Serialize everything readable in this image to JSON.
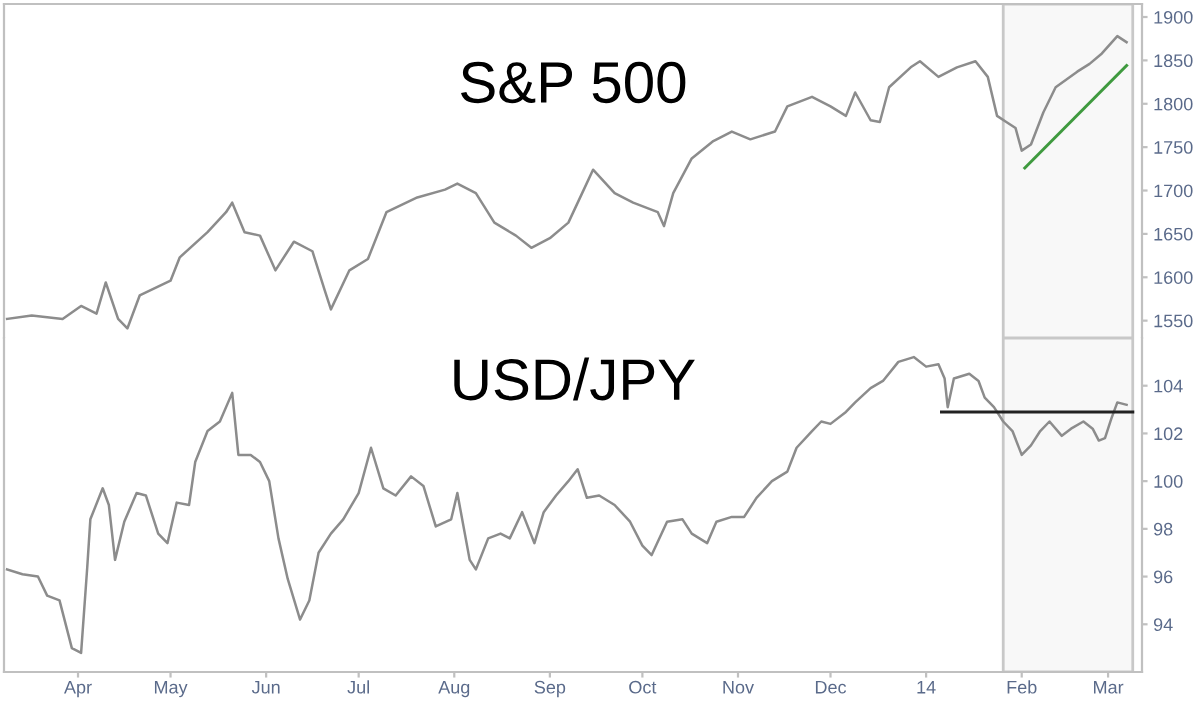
{
  "chart_data": [
    {
      "type": "line",
      "title": "S&P 500",
      "xlim": [
        "2013-03-08",
        "2014-03-12"
      ],
      "ylim": [
        1530,
        1915
      ],
      "yticks": [
        1550,
        1600,
        1650,
        1700,
        1750,
        1800,
        1850,
        1900
      ],
      "tick_labels": "y",
      "grid": false,
      "legend": false,
      "bands": [
        {
          "axis": "x",
          "from": "2014-01-26",
          "to": "2014-03-09",
          "color": "#c8c8c8"
        }
      ],
      "series": [
        {
          "color": "#8c8c8c",
          "x": [
            "2013-03-09",
            "2013-03-17",
            "2013-03-27",
            "2013-04-02",
            "2013-04-07",
            "2013-04-10",
            "2013-04-14",
            "2013-04-17",
            "2013-04-21",
            "2013-05-01",
            "2013-05-04",
            "2013-05-13",
            "2013-05-19",
            "2013-05-21",
            "2013-05-25",
            "2013-05-30",
            "2013-06-04",
            "2013-06-10",
            "2013-06-16",
            "2013-06-20",
            "2013-06-22",
            "2013-06-28",
            "2013-07-04",
            "2013-07-10",
            "2013-07-20",
            "2013-07-29",
            "2013-08-02",
            "2013-08-08",
            "2013-08-14",
            "2013-08-21",
            "2013-08-26",
            "2013-09-01",
            "2013-09-07",
            "2013-09-12",
            "2013-09-15",
            "2013-09-22",
            "2013-09-28",
            "2013-10-06",
            "2013-10-08",
            "2013-10-11",
            "2013-10-17",
            "2013-10-24",
            "2013-10-30",
            "2013-11-05",
            "2013-11-13",
            "2013-11-17",
            "2013-11-25",
            "2013-12-01",
            "2013-12-06",
            "2013-12-09",
            "2013-12-14",
            "2013-12-17",
            "2013-12-20",
            "2013-12-27",
            "2013-12-30",
            "2014-01-05",
            "2014-01-11",
            "2014-01-17",
            "2014-01-21",
            "2014-01-24",
            "2014-01-27",
            "2014-01-30",
            "2014-02-01",
            "2014-02-04",
            "2014-02-08",
            "2014-02-12",
            "2014-02-19",
            "2014-02-23",
            "2014-02-27",
            "2014-03-04",
            "2014-03-07"
          ],
          "values": [
            1552,
            1556,
            1552,
            1567,
            1558,
            1594,
            1552,
            1541,
            1579,
            1596,
            1623,
            1652,
            1675,
            1686,
            1652,
            1648,
            1608,
            1641,
            1630,
            1585,
            1563,
            1608,
            1621,
            1675,
            1692,
            1701,
            1708,
            1697,
            1663,
            1648,
            1634,
            1645,
            1663,
            1701,
            1724,
            1697,
            1686,
            1675,
            1659,
            1697,
            1737,
            1757,
            1768,
            1759,
            1768,
            1797,
            1808,
            1797,
            1786,
            1813,
            1781,
            1779,
            1819,
            1842,
            1849,
            1831,
            1842,
            1849,
            1831,
            1786,
            1779,
            1772,
            1746,
            1753,
            1790,
            1819,
            1837,
            1846,
            1858,
            1878,
            1871
          ]
        },
        {
          "type": "line",
          "color": "#3f9a3f",
          "x": [
            "2014-02-02",
            "2014-03-07"
          ],
          "values": [
            1726,
            1844
          ]
        }
      ]
    },
    {
      "type": "line",
      "title": "USD/JPY",
      "xlim": [
        "2013-03-08",
        "2014-03-12"
      ],
      "ylim": [
        92,
        106
      ],
      "yticks": [
        94,
        96,
        98,
        100,
        102,
        104
      ],
      "xticks": [
        {
          "value": "2013-04-01",
          "label": "Apr"
        },
        {
          "value": "2013-05-01",
          "label": "May"
        },
        {
          "value": "2013-06-01",
          "label": "Jun"
        },
        {
          "value": "2013-07-01",
          "label": "Jul"
        },
        {
          "value": "2013-08-01",
          "label": "Aug"
        },
        {
          "value": "2013-09-01",
          "label": "Sep"
        },
        {
          "value": "2013-10-01",
          "label": "Oct"
        },
        {
          "value": "2013-11-01",
          "label": "Nov"
        },
        {
          "value": "2013-12-01",
          "label": "Dec"
        },
        {
          "value": "2014-01-01",
          "label": "14"
        },
        {
          "value": "2014-02-01",
          "label": "Feb"
        },
        {
          "value": "2014-03-01",
          "label": "Mar"
        }
      ],
      "grid": false,
      "legend": false,
      "bands": [
        {
          "axis": "x",
          "from": "2014-01-26",
          "to": "2014-03-09",
          "color": "#c8c8c8"
        }
      ],
      "series": [
        {
          "color": "#8c8c8c",
          "x": [
            "2013-03-09",
            "2013-03-14",
            "2013-03-19",
            "2013-03-22",
            "2013-03-26",
            "2013-03-30",
            "2013-04-02",
            "2013-04-04",
            "2013-04-05",
            "2013-04-09",
            "2013-04-11",
            "2013-04-13",
            "2013-04-16",
            "2013-04-20",
            "2013-04-23",
            "2013-04-27",
            "2013-04-30",
            "2013-05-03",
            "2013-05-07",
            "2013-05-09",
            "2013-05-13",
            "2013-05-17",
            "2013-05-21",
            "2013-05-23",
            "2013-05-27",
            "2013-05-30",
            "2013-06-02",
            "2013-06-05",
            "2013-06-08",
            "2013-06-12",
            "2013-06-15",
            "2013-06-18",
            "2013-06-22",
            "2013-06-26",
            "2013-07-01",
            "2013-07-05",
            "2013-07-09",
            "2013-07-13",
            "2013-07-18",
            "2013-07-22",
            "2013-07-26",
            "2013-07-31",
            "2013-08-02",
            "2013-08-06",
            "2013-08-08",
            "2013-08-12",
            "2013-08-16",
            "2013-08-19",
            "2013-08-23",
            "2013-08-27",
            "2013-08-30",
            "2013-09-03",
            "2013-09-07",
            "2013-09-10",
            "2013-09-13",
            "2013-09-17",
            "2013-09-22",
            "2013-09-27",
            "2013-10-01",
            "2013-10-04",
            "2013-10-09",
            "2013-10-14",
            "2013-10-17",
            "2013-10-22",
            "2013-10-25",
            "2013-10-30",
            "2013-11-03",
            "2013-11-07",
            "2013-11-12",
            "2013-11-17",
            "2013-11-20",
            "2013-11-25",
            "2013-11-28",
            "2013-12-01",
            "2013-12-06",
            "2013-12-09",
            "2013-12-14",
            "2013-12-18",
            "2013-12-23",
            "2013-12-28",
            "2014-01-01",
            "2014-01-05",
            "2014-01-07",
            "2014-01-08",
            "2014-01-10",
            "2014-01-15",
            "2014-01-18",
            "2014-01-20",
            "2014-01-23",
            "2014-01-26",
            "2014-01-29",
            "2014-02-01",
            "2014-02-04",
            "2014-02-07",
            "2014-02-10",
            "2014-02-14",
            "2014-02-17",
            "2014-02-21",
            "2014-02-24",
            "2014-02-26",
            "2014-02-28",
            "2014-03-02",
            "2014-03-04",
            "2014-03-07"
          ],
          "values": [
            96.3,
            96.1,
            96.0,
            95.2,
            95.0,
            93.0,
            92.8,
            96.4,
            98.4,
            99.7,
            99.0,
            96.7,
            98.3,
            99.5,
            99.4,
            97.8,
            97.4,
            99.1,
            99.0,
            100.8,
            102.1,
            102.5,
            103.7,
            101.1,
            101.1,
            100.8,
            100.0,
            97.6,
            95.9,
            94.2,
            95.0,
            97.0,
            97.8,
            98.4,
            99.5,
            101.4,
            99.7,
            99.4,
            100.2,
            99.8,
            98.1,
            98.4,
            99.5,
            96.7,
            96.3,
            97.6,
            97.8,
            97.6,
            98.7,
            97.4,
            98.7,
            99.4,
            100.0,
            100.5,
            99.3,
            99.4,
            99.0,
            98.3,
            97.3,
            96.9,
            98.3,
            98.4,
            97.8,
            97.4,
            98.3,
            98.5,
            98.5,
            99.3,
            100.0,
            100.4,
            101.4,
            102.1,
            102.5,
            102.4,
            102.9,
            103.3,
            103.9,
            104.2,
            105.0,
            105.2,
            104.8,
            104.9,
            104.3,
            103.1,
            104.3,
            104.5,
            104.2,
            103.5,
            103.1,
            102.5,
            102.1,
            101.1,
            101.5,
            102.1,
            102.5,
            101.9,
            102.2,
            102.5,
            102.2,
            101.7,
            101.8,
            102.6,
            103.3,
            103.2
          ]
        },
        {
          "type": "line",
          "color": "#222222",
          "x": [
            "2014-01-06",
            "2014-03-09"
          ],
          "values": [
            102.9,
            102.9
          ]
        }
      ]
    }
  ]
}
